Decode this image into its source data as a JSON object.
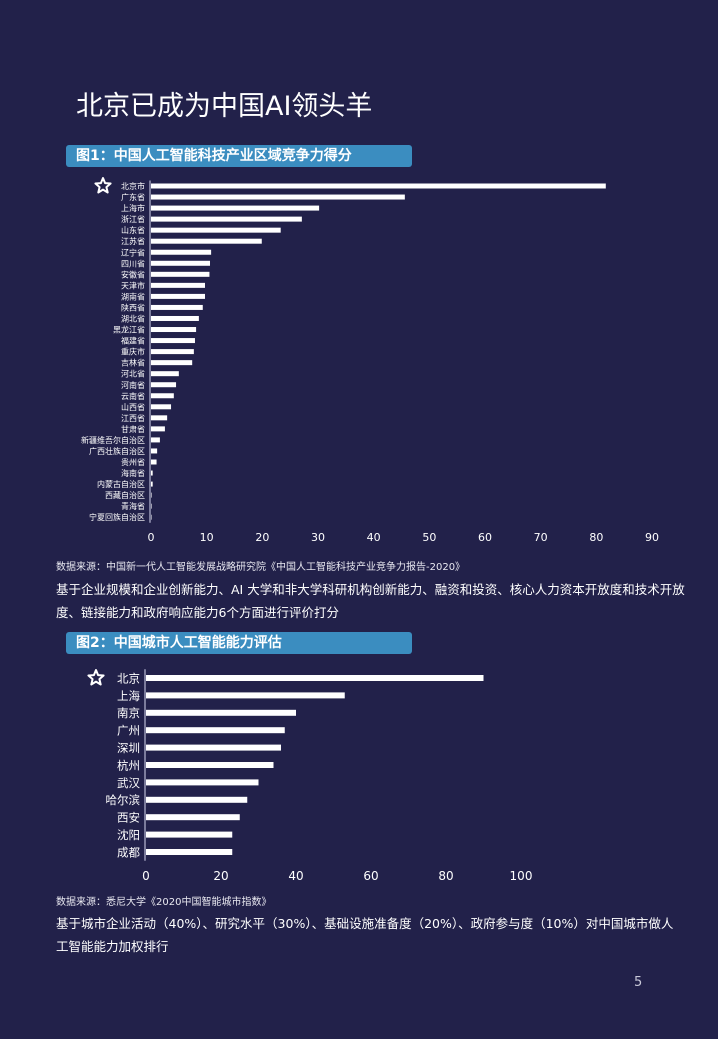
{
  "page": {
    "title": "北京已成为中国AI领头羊",
    "page_number": "5",
    "background_color": "#22214a",
    "accent_color": "#3b8dc0"
  },
  "figure1": {
    "banner": "图1：中国人工智能科技产业区域竞争力得分",
    "source": "数据来源：中国新一代人工智能发展战略研究院《中国人工智能科技产业竞争力报告-2020》",
    "description": "基于企业规模和企业创新能力、AI 大学和非大学科研机构创新能力、融资和投资、核心人力资本开放度和技术开放度、链接能力和政府响应能力6个方面进行评价打分",
    "highlight_icon": "star-icon"
  },
  "figure2": {
    "banner": "图2：中国城市人工智能能力评估",
    "source": "数据来源：悉尼大学《2020中国智能城市指数》",
    "description": "基于城市企业活动（40%）、研究水平（30%）、基础设施准备度（20%）、政府参与度（10%）对中国城市做人工智能能力加权排行",
    "highlight_icon": "star-icon"
  },
  "chart_data": [
    {
      "type": "bar",
      "orientation": "horizontal",
      "categories": [
        "北京市",
        "广东省",
        "上海市",
        "浙江省",
        "山东省",
        "江苏省",
        "辽宁省",
        "四川省",
        "安徽省",
        "天津市",
        "湖南省",
        "陕西省",
        "湖北省",
        "黑龙江省",
        "福建省",
        "重庆市",
        "吉林省",
        "河北省",
        "河南省",
        "云南省",
        "山西省",
        "江西省",
        "甘肃省",
        "新疆维吾尔自治区",
        "广西壮族自治区",
        "贵州省",
        "海南省",
        "内蒙古自治区",
        "西藏自治区",
        "青海省",
        "宁夏回族自治区"
      ],
      "values": [
        81.7,
        45.6,
        30.2,
        27.1,
        23.3,
        19.9,
        10.8,
        10.6,
        10.5,
        9.7,
        9.7,
        9.3,
        8.6,
        8.1,
        7.9,
        7.7,
        7.4,
        5.0,
        4.5,
        4.1,
        3.6,
        2.9,
        2.5,
        1.6,
        1.1,
        1.0,
        0.3,
        0.3,
        0.1,
        0.1,
        0.0
      ],
      "xlim": [
        0,
        90
      ],
      "ticks": [
        "0",
        "10",
        "20",
        "30",
        "40",
        "50",
        "60",
        "70",
        "80",
        "90"
      ],
      "bar_color": "#ffffff",
      "grid": false
    },
    {
      "type": "bar",
      "orientation": "horizontal",
      "categories": [
        "北京",
        "上海",
        "南京",
        "广州",
        "深圳",
        "杭州",
        "武汉",
        "哈尔滨",
        "西安",
        "沈阳",
        "成都"
      ],
      "values": [
        90,
        53,
        40,
        37,
        36,
        34,
        30,
        27,
        25,
        23,
        23
      ],
      "xlim": [
        0,
        100
      ],
      "ticks": [
        "0",
        "20",
        "40",
        "60",
        "80",
        "100"
      ],
      "bar_color": "#ffffff",
      "grid": false
    }
  ]
}
